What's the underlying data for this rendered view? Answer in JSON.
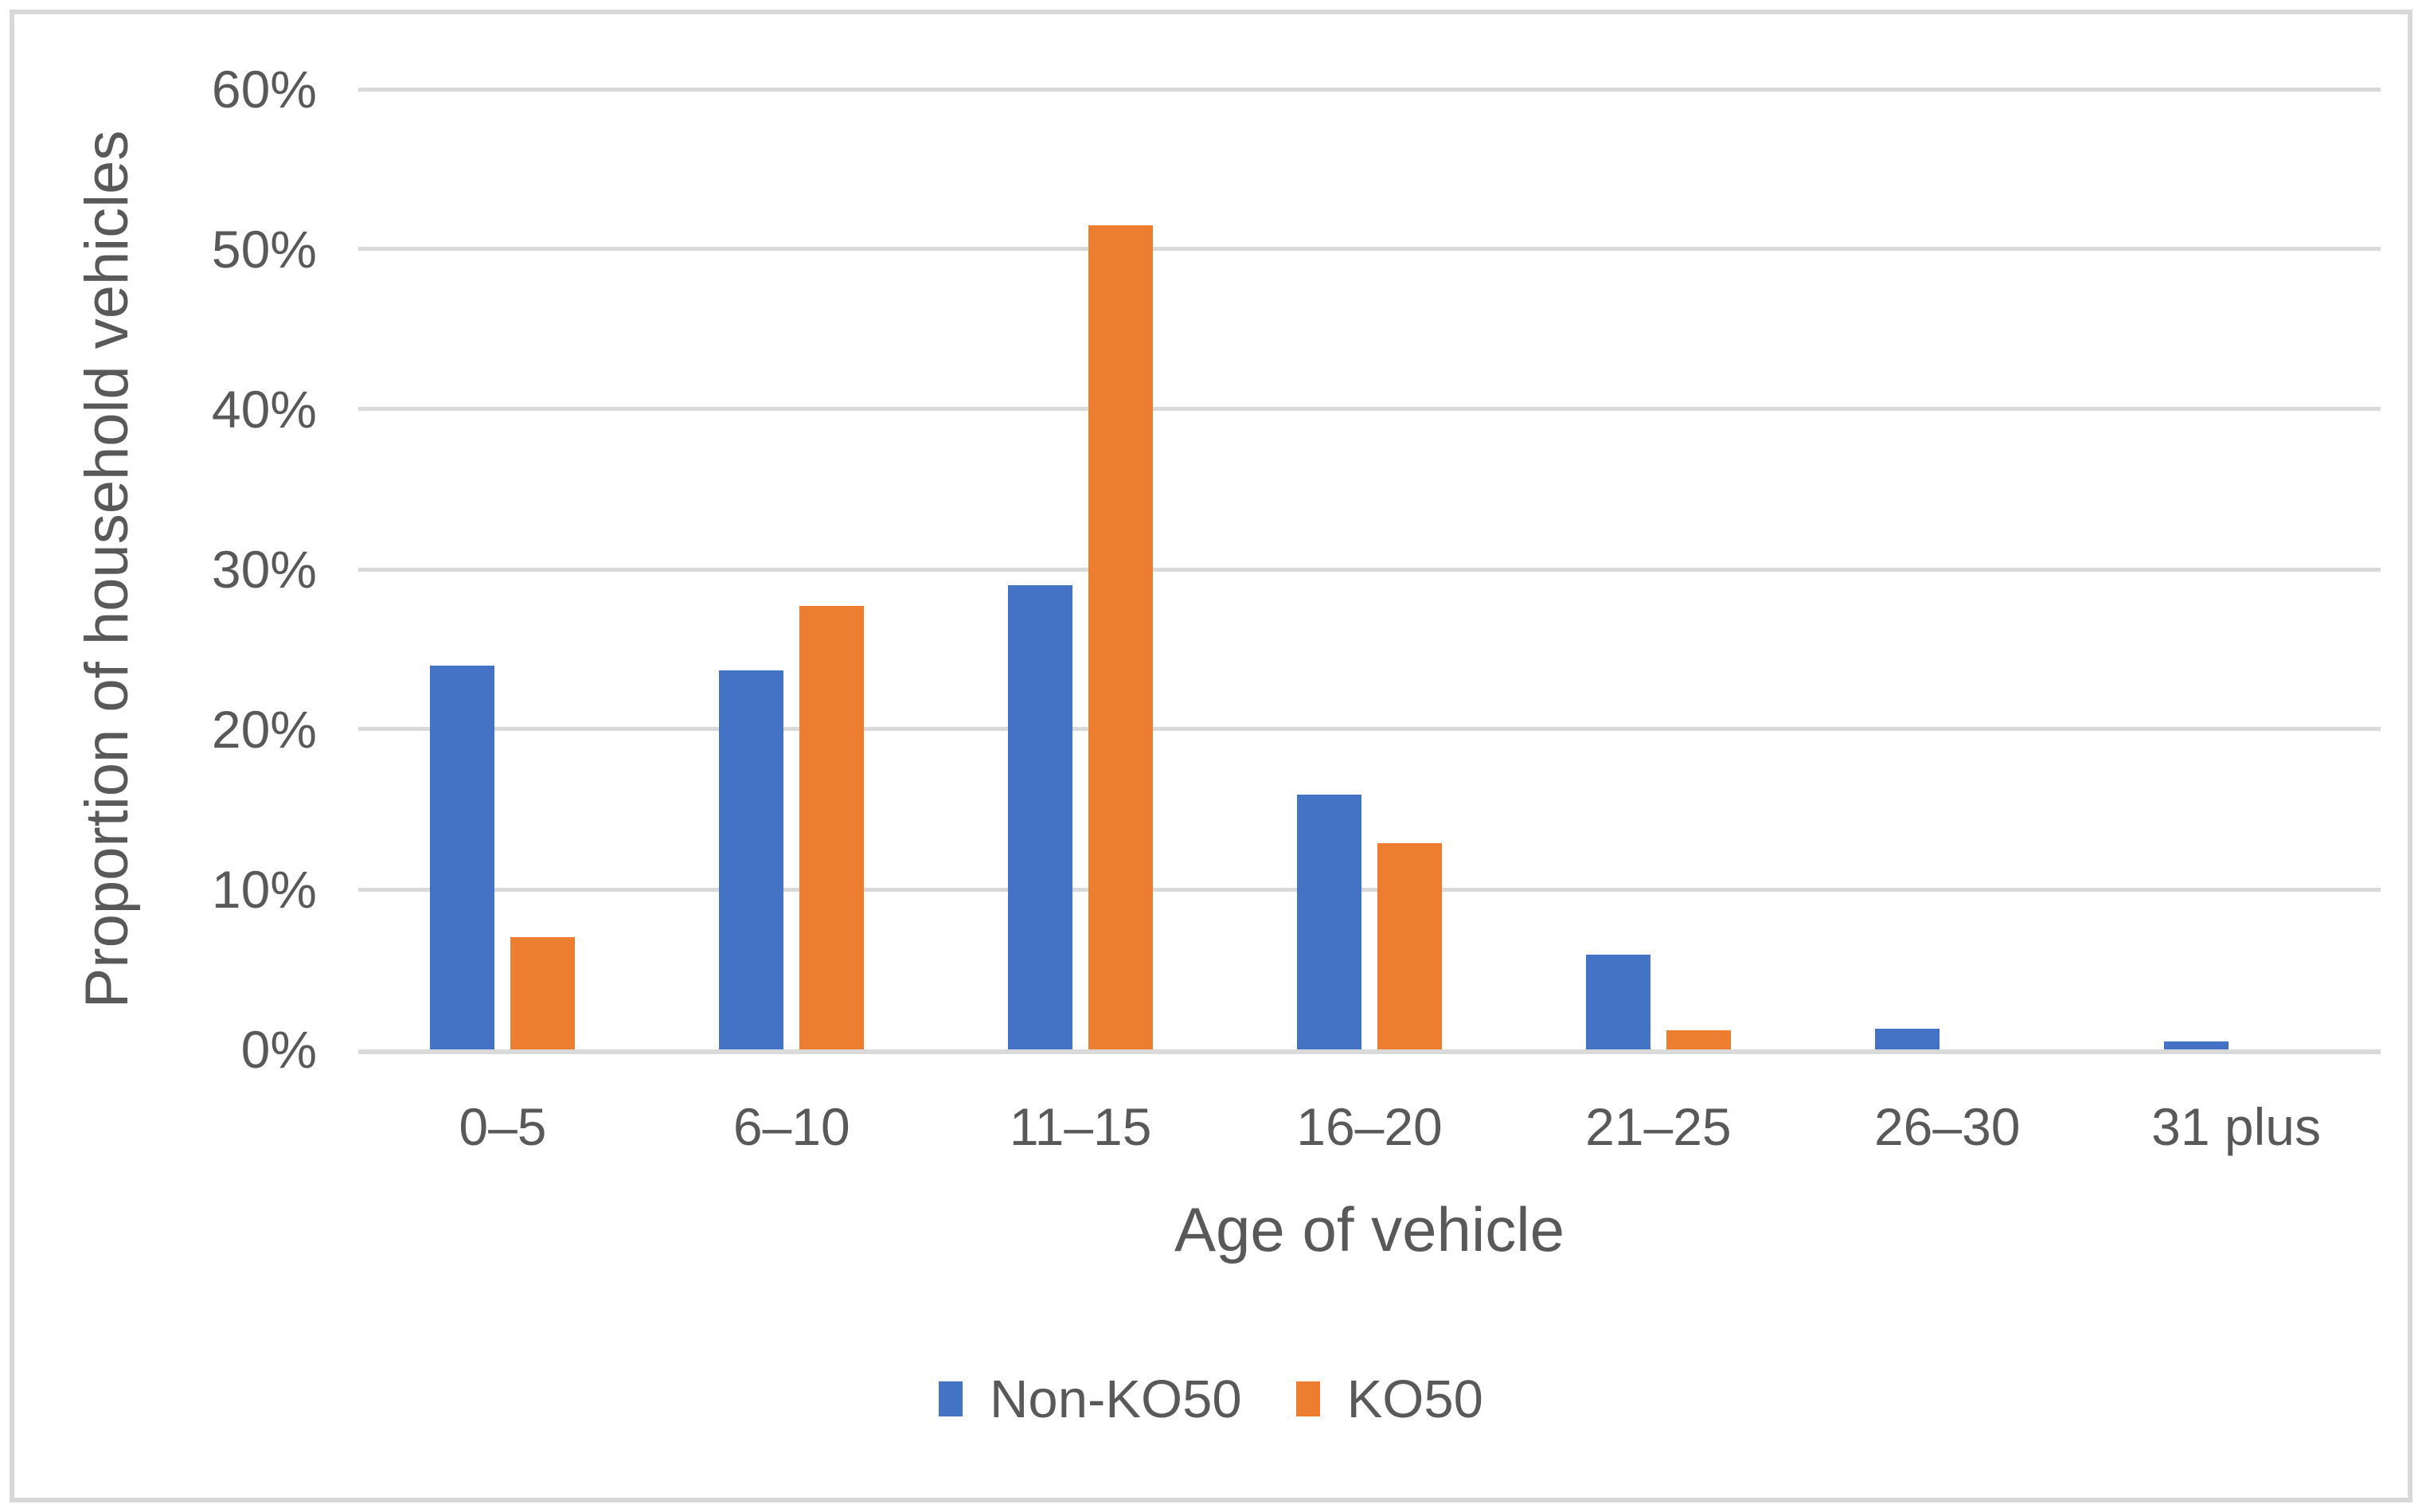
{
  "chart_data": {
    "type": "bar",
    "title": "",
    "xlabel": "Age of vehicle",
    "ylabel": "Proportion of household vehicles",
    "categories": [
      "0–5",
      "6–10",
      "11–15",
      "16–20",
      "21–25",
      "26–30",
      "31 plus"
    ],
    "series": [
      {
        "name": "Non-KO50",
        "color": "#4472C4",
        "values": [
          24,
          23.7,
          29,
          15.9,
          5.9,
          1.3,
          0.5
        ]
      },
      {
        "name": "KO50",
        "color": "#ED7D31",
        "values": [
          7,
          27.7,
          51.5,
          12.9,
          1.2,
          0,
          0
        ]
      }
    ],
    "unit": "%",
    "ylim": [
      0,
      60
    ],
    "ytick_step": 10,
    "ytick_labels": [
      "0%",
      "10%",
      "20%",
      "30%",
      "40%",
      "50%",
      "60%"
    ],
    "grid": true,
    "legend_position": "bottom",
    "legend_labels": [
      "Non-KO50",
      "KO50"
    ]
  },
  "style": {
    "background": "#FFFFFF",
    "frame_border_color": "#D8D8D8",
    "grid_color": "#D9D9D9",
    "axis_line_color": "#D9D9D9",
    "text_color": "#595959",
    "non_ko50_color": "#4472C4",
    "ko50_color": "#ED7D31"
  }
}
